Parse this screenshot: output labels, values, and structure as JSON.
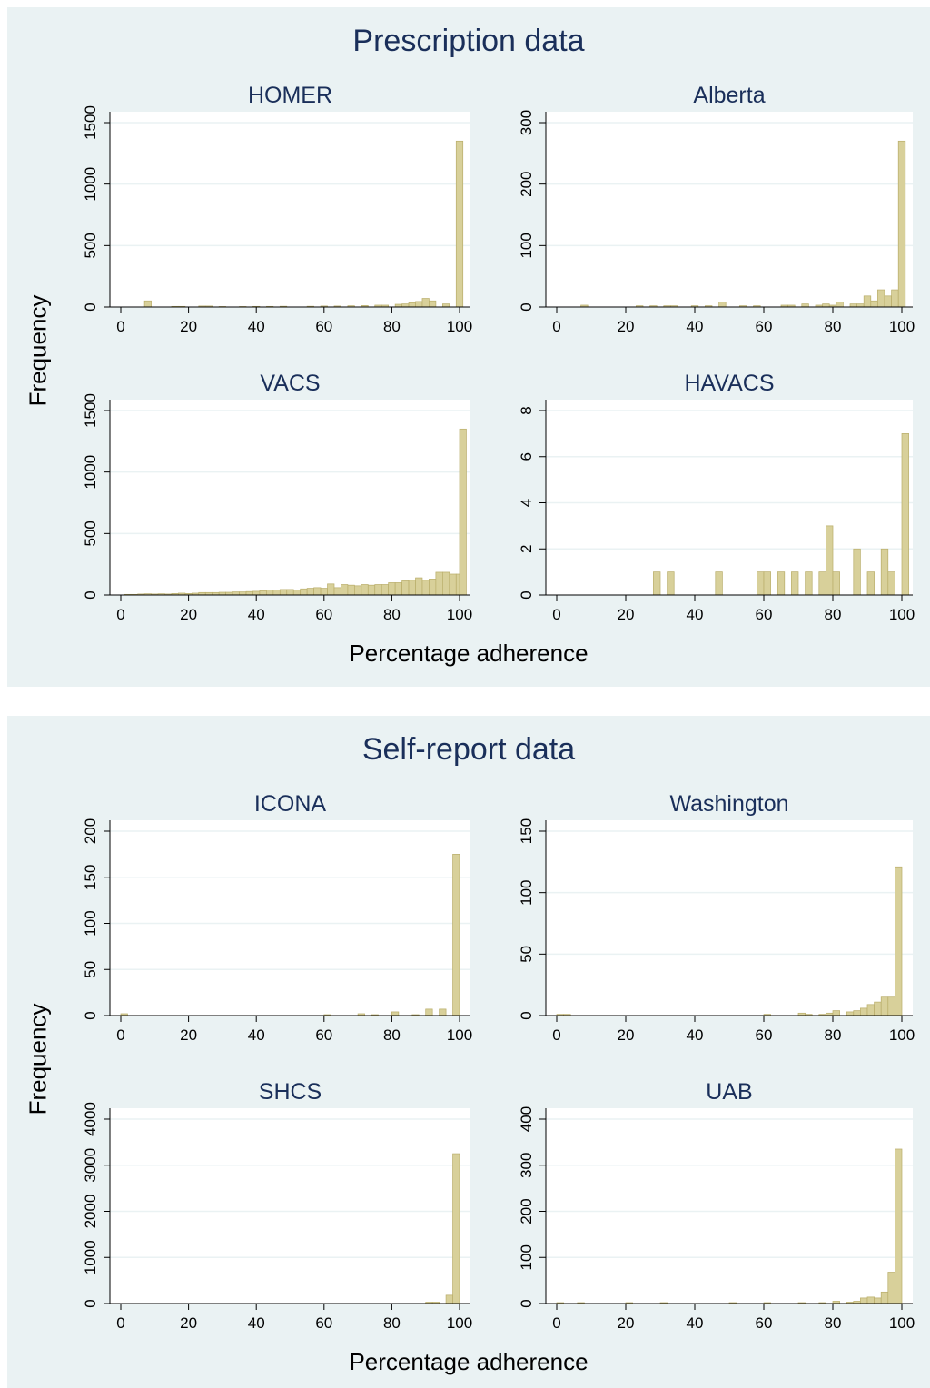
{
  "colors": {
    "panel_bg": "#eaf2f3",
    "plot_bg": "#ffffff",
    "bar_fill": "#d8d09a",
    "bar_stroke": "#b9ad6a",
    "title_color": "#1a2f5a",
    "grid": "#eaf2f3"
  },
  "sections": [
    {
      "title": "Prescription data",
      "ylabel": "Frequency",
      "xlabel": "Percentage adherence"
    },
    {
      "title": "Self-report data",
      "ylabel": "Frequency",
      "xlabel": "Percentage adherence"
    }
  ],
  "chart_data": [
    {
      "type": "bar",
      "section": "Prescription data",
      "title": "HOMER",
      "xlabel": "Percentage adherence",
      "ylabel": "Frequency",
      "xlim": [
        0,
        100
      ],
      "ylim": [
        0,
        1500
      ],
      "xticks": [
        0,
        20,
        40,
        60,
        80,
        100
      ],
      "yticks": [
        0,
        500,
        1000,
        1500
      ],
      "grid": true,
      "bin_width": 2,
      "bars": [
        [
          8,
          50
        ],
        [
          16,
          5
        ],
        [
          18,
          5
        ],
        [
          24,
          8
        ],
        [
          26,
          8
        ],
        [
          30,
          4
        ],
        [
          36,
          4
        ],
        [
          40,
          5
        ],
        [
          44,
          5
        ],
        [
          48,
          6
        ],
        [
          56,
          6
        ],
        [
          60,
          8
        ],
        [
          64,
          8
        ],
        [
          68,
          10
        ],
        [
          72,
          12
        ],
        [
          76,
          15
        ],
        [
          78,
          15
        ],
        [
          82,
          22
        ],
        [
          84,
          25
        ],
        [
          86,
          35
        ],
        [
          88,
          45
        ],
        [
          90,
          70
        ],
        [
          92,
          50
        ],
        [
          96,
          25
        ],
        [
          100,
          1350
        ]
      ]
    },
    {
      "type": "bar",
      "section": "Prescription data",
      "title": "Alberta",
      "xlabel": "Percentage adherence",
      "ylabel": "Frequency",
      "xlim": [
        0,
        100
      ],
      "ylim": [
        0,
        300
      ],
      "xticks": [
        0,
        20,
        40,
        60,
        80,
        100
      ],
      "yticks": [
        0,
        100,
        200,
        300
      ],
      "grid": true,
      "bin_width": 2,
      "bars": [
        [
          8,
          3
        ],
        [
          24,
          2
        ],
        [
          28,
          2
        ],
        [
          32,
          2
        ],
        [
          34,
          2
        ],
        [
          40,
          2
        ],
        [
          44,
          2
        ],
        [
          48,
          8
        ],
        [
          54,
          2
        ],
        [
          58,
          2
        ],
        [
          66,
          3
        ],
        [
          68,
          3
        ],
        [
          72,
          5
        ],
        [
          76,
          3
        ],
        [
          78,
          5
        ],
        [
          80,
          3
        ],
        [
          82,
          8
        ],
        [
          86,
          5
        ],
        [
          88,
          5
        ],
        [
          90,
          18
        ],
        [
          92,
          10
        ],
        [
          94,
          28
        ],
        [
          96,
          18
        ],
        [
          98,
          28
        ],
        [
          100,
          270
        ]
      ]
    },
    {
      "type": "bar",
      "section": "Prescription data",
      "title": "VACS",
      "xlabel": "Percentage adherence",
      "ylabel": "Frequency",
      "xlim": [
        0,
        100
      ],
      "ylim": [
        0,
        1500
      ],
      "xticks": [
        0,
        20,
        40,
        60,
        80,
        100
      ],
      "yticks": [
        0,
        500,
        1000,
        1500
      ],
      "grid": true,
      "bin_width": 2,
      "bars": [
        [
          2,
          5
        ],
        [
          4,
          5
        ],
        [
          6,
          8
        ],
        [
          8,
          10
        ],
        [
          10,
          8
        ],
        [
          12,
          10
        ],
        [
          14,
          8
        ],
        [
          16,
          12
        ],
        [
          18,
          15
        ],
        [
          20,
          12
        ],
        [
          22,
          15
        ],
        [
          24,
          20
        ],
        [
          26,
          20
        ],
        [
          28,
          20
        ],
        [
          30,
          22
        ],
        [
          32,
          22
        ],
        [
          34,
          25
        ],
        [
          36,
          25
        ],
        [
          38,
          28
        ],
        [
          40,
          30
        ],
        [
          42,
          35
        ],
        [
          44,
          40
        ],
        [
          46,
          40
        ],
        [
          48,
          45
        ],
        [
          50,
          45
        ],
        [
          52,
          40
        ],
        [
          54,
          50
        ],
        [
          56,
          55
        ],
        [
          58,
          60
        ],
        [
          60,
          55
        ],
        [
          62,
          90
        ],
        [
          64,
          60
        ],
        [
          66,
          85
        ],
        [
          68,
          80
        ],
        [
          70,
          75
        ],
        [
          72,
          85
        ],
        [
          74,
          80
        ],
        [
          76,
          85
        ],
        [
          78,
          85
        ],
        [
          80,
          100
        ],
        [
          82,
          100
        ],
        [
          84,
          115
        ],
        [
          86,
          120
        ],
        [
          88,
          140
        ],
        [
          90,
          120
        ],
        [
          92,
          130
        ],
        [
          94,
          185
        ],
        [
          96,
          185
        ],
        [
          98,
          170
        ],
        [
          100,
          170
        ],
        [
          101,
          1350
        ]
      ]
    },
    {
      "type": "bar",
      "section": "Prescription data",
      "title": "HAVACS",
      "xlabel": "Percentage adherence",
      "ylabel": "Frequency",
      "xlim": [
        0,
        100
      ],
      "ylim": [
        0,
        8
      ],
      "xticks": [
        0,
        20,
        40,
        60,
        80,
        100
      ],
      "yticks": [
        0,
        2,
        4,
        6,
        8
      ],
      "grid": true,
      "bin_width": 2,
      "bars": [
        [
          29,
          1
        ],
        [
          33,
          1
        ],
        [
          47,
          1
        ],
        [
          59,
          1
        ],
        [
          61,
          1
        ],
        [
          65,
          1
        ],
        [
          69,
          1
        ],
        [
          73,
          1
        ],
        [
          77,
          1
        ],
        [
          79,
          3
        ],
        [
          81,
          1
        ],
        [
          87,
          2
        ],
        [
          91,
          1
        ],
        [
          95,
          2
        ],
        [
          97,
          1
        ],
        [
          101,
          7
        ]
      ]
    },
    {
      "type": "bar",
      "section": "Self-report data",
      "title": "ICONA",
      "xlabel": "Percentage adherence",
      "ylabel": "Frequency",
      "xlim": [
        0,
        100
      ],
      "ylim": [
        0,
        200
      ],
      "xticks": [
        0,
        20,
        40,
        60,
        80,
        100
      ],
      "yticks": [
        0,
        50,
        100,
        150,
        200
      ],
      "grid": true,
      "bin_width": 2,
      "bars": [
        [
          1,
          2
        ],
        [
          61,
          1
        ],
        [
          71,
          2
        ],
        [
          75,
          1
        ],
        [
          81,
          4
        ],
        [
          87,
          1
        ],
        [
          91,
          7
        ],
        [
          95,
          7
        ],
        [
          99,
          175
        ]
      ]
    },
    {
      "type": "bar",
      "section": "Self-report data",
      "title": "Washington",
      "xlabel": "Percentage adherence",
      "ylabel": "Frequency",
      "xlim": [
        0,
        100
      ],
      "ylim": [
        0,
        150
      ],
      "xticks": [
        0,
        20,
        40,
        60,
        80,
        100
      ],
      "yticks": [
        0,
        50,
        100,
        150
      ],
      "grid": true,
      "bin_width": 2,
      "bars": [
        [
          1,
          1
        ],
        [
          3,
          1
        ],
        [
          61,
          1
        ],
        [
          71,
          2
        ],
        [
          73,
          1
        ],
        [
          77,
          1
        ],
        [
          79,
          2
        ],
        [
          81,
          4
        ],
        [
          85,
          3
        ],
        [
          87,
          4
        ],
        [
          89,
          6
        ],
        [
          91,
          9
        ],
        [
          93,
          11
        ],
        [
          95,
          15
        ],
        [
          97,
          15
        ],
        [
          99,
          121
        ]
      ]
    },
    {
      "type": "bar",
      "section": "Self-report data",
      "title": "SHCS",
      "xlabel": "Percentage adherence",
      "ylabel": "Frequency",
      "xlim": [
        0,
        100
      ],
      "ylim": [
        0,
        4000
      ],
      "xticks": [
        0,
        20,
        40,
        60,
        80,
        100
      ],
      "yticks": [
        0,
        1000,
        2000,
        3000,
        4000
      ],
      "grid": true,
      "bin_width": 2,
      "bars": [
        [
          91,
          30
        ],
        [
          93,
          30
        ],
        [
          97,
          180
        ],
        [
          99,
          3250
        ]
      ]
    },
    {
      "type": "bar",
      "section": "Self-report data",
      "title": "UAB",
      "xlabel": "Percentage adherence",
      "ylabel": "Frequency",
      "xlim": [
        0,
        100
      ],
      "ylim": [
        0,
        400
      ],
      "xticks": [
        0,
        20,
        40,
        60,
        80,
        100
      ],
      "yticks": [
        0,
        100,
        200,
        300,
        400
      ],
      "grid": true,
      "bin_width": 2,
      "bars": [
        [
          1,
          2
        ],
        [
          7,
          2
        ],
        [
          21,
          2
        ],
        [
          31,
          2
        ],
        [
          51,
          2
        ],
        [
          61,
          2
        ],
        [
          71,
          2
        ],
        [
          77,
          2
        ],
        [
          81,
          5
        ],
        [
          85,
          3
        ],
        [
          87,
          5
        ],
        [
          89,
          12
        ],
        [
          91,
          14
        ],
        [
          93,
          12
        ],
        [
          95,
          25
        ],
        [
          97,
          68
        ],
        [
          99,
          335
        ]
      ]
    }
  ]
}
